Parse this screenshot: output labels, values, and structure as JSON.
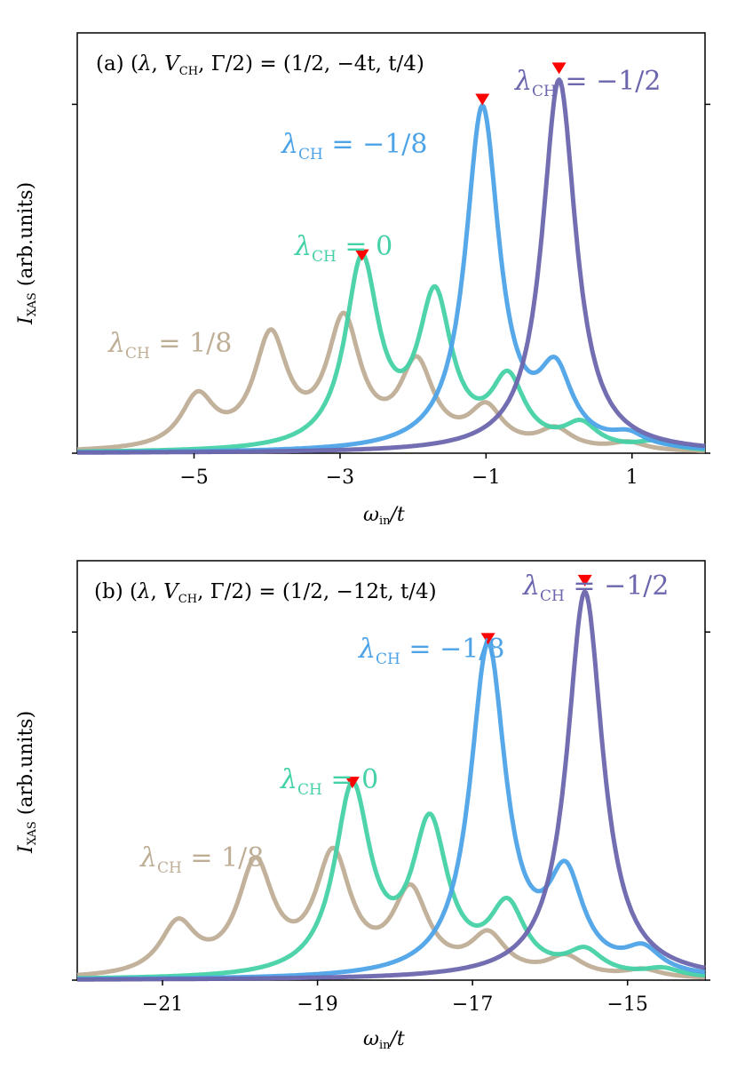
{
  "chart_data": [
    {
      "type": "line",
      "panel": "a",
      "title": "(a) (λ, V_CH, Γ/2) = (1/2, −4t, t/4)",
      "title_parts": {
        "prefix": "(a) (",
        "lambda": "λ",
        "sep1": ", ",
        "V": "V",
        "V_sub": "CH",
        "sep2": ", Γ/2) = (1/2, ",
        "rest": "−4t, t/4)"
      },
      "xlabel": "ω_in/t",
      "xlabel_parts": {
        "omega": "ω",
        "sub": "in",
        "rest": "/t"
      },
      "ylabel": "I_XAS (arb.units)",
      "ylabel_parts": {
        "I": "I",
        "sub": "XAS",
        "rest": " (arb.units)"
      },
      "xlim": [
        -6.6,
        2.0
      ],
      "ylim": [
        0,
        1.08
      ],
      "xticks": [
        -5,
        -3,
        -1,
        1
      ],
      "xtick_labels": [
        "−5",
        "−3",
        "−1",
        "1"
      ],
      "series": [
        {
          "name": "λ_CH = 1/8",
          "label_symbol": "λ",
          "label_sub": "CH",
          "label_value": " = 1/8",
          "color": "#bfae96",
          "peaks": [
            {
              "x": -4.95,
              "a": 0.13,
              "w": 0.28
            },
            {
              "x": -3.95,
              "a": 0.28,
              "w": 0.28
            },
            {
              "x": -2.95,
              "a": 0.32,
              "w": 0.28
            },
            {
              "x": -1.95,
              "a": 0.21,
              "w": 0.28
            },
            {
              "x": -1.0,
              "a": 0.1,
              "w": 0.28
            },
            {
              "x": -0.05,
              "a": 0.05,
              "w": 0.28
            },
            {
              "x": 0.95,
              "a": 0.02,
              "w": 0.28
            }
          ]
        },
        {
          "name": "λ_CH = 0",
          "label_symbol": "λ",
          "label_sub": "CH",
          "label_value": " = 0",
          "color": "#45d1a7",
          "peaks": [
            {
              "x": -2.7,
              "a": 0.48,
              "w": 0.28
            },
            {
              "x": -1.7,
              "a": 0.38,
              "w": 0.28
            },
            {
              "x": -0.7,
              "a": 0.17,
              "w": 0.28
            },
            {
              "x": 0.3,
              "a": 0.06,
              "w": 0.28
            },
            {
              "x": 1.3,
              "a": 0.02,
              "w": 0.28
            }
          ]
        },
        {
          "name": "λ_CH = −1/8",
          "label_symbol": "λ",
          "label_sub": "CH",
          "label_value": " = −1/8",
          "color": "#4da3e8",
          "peaks": [
            {
              "x": -1.05,
              "a": 0.88,
              "w": 0.28
            },
            {
              "x": -0.05,
              "a": 0.18,
              "w": 0.28
            },
            {
              "x": 0.95,
              "a": 0.03,
              "w": 0.28
            }
          ]
        },
        {
          "name": "λ_CH = −1/2",
          "label_symbol": "λ",
          "label_sub": "CH",
          "label_value": " = −1/2",
          "color": "#6b66ad",
          "peaks": [
            {
              "x": 0.0,
              "a": 0.96,
              "w": 0.28
            }
          ]
        }
      ],
      "markers": [
        {
          "x": -2.7,
          "y": 0.51
        },
        {
          "x": -1.05,
          "y": 0.91
        },
        {
          "x": 0.0,
          "y": 0.99
        }
      ],
      "marker_color": "#ff0000"
    },
    {
      "type": "line",
      "panel": "b",
      "title": "(b) (λ, V_CH, Γ/2) = (1/2, −12t, t/4)",
      "title_parts": {
        "prefix": "(b) (",
        "lambda": "λ",
        "sep1": ", ",
        "V": "V",
        "V_sub": "CH",
        "sep2": ", Γ/2) = (1/2, ",
        "rest": "−12t, t/4)"
      },
      "xlabel": "ω_in/t",
      "xlabel_parts": {
        "omega": "ω",
        "sub": "in",
        "rest": "/t"
      },
      "ylabel": "I_XAS (arb.units)",
      "ylabel_parts": {
        "I": "I",
        "sub": "XAS",
        "rest": " (arb.units)"
      },
      "xlim": [
        -22.1,
        -14.0
      ],
      "ylim": [
        0,
        1.08
      ],
      "xticks": [
        -21,
        -19,
        -17,
        -15
      ],
      "xtick_labels": [
        "−21",
        "−19",
        "−17",
        "−15"
      ],
      "series": [
        {
          "name": "λ_CH = 1/8",
          "label_symbol": "λ",
          "label_sub": "CH",
          "label_value": " = 1/8",
          "color": "#bfae96",
          "peaks": [
            {
              "x": -20.8,
              "a": 0.13,
              "w": 0.28
            },
            {
              "x": -19.8,
              "a": 0.28,
              "w": 0.28
            },
            {
              "x": -18.8,
              "a": 0.3,
              "w": 0.28
            },
            {
              "x": -17.8,
              "a": 0.21,
              "w": 0.28
            },
            {
              "x": -16.8,
              "a": 0.1,
              "w": 0.28
            },
            {
              "x": -15.8,
              "a": 0.05,
              "w": 0.28
            },
            {
              "x": -14.8,
              "a": 0.02,
              "w": 0.28
            }
          ]
        },
        {
          "name": "λ_CH = 0",
          "label_symbol": "λ",
          "label_sub": "CH",
          "label_value": " = 0",
          "color": "#45d1a7",
          "peaks": [
            {
              "x": -18.55,
              "a": 0.48,
              "w": 0.28
            },
            {
              "x": -17.55,
              "a": 0.38,
              "w": 0.28
            },
            {
              "x": -16.55,
              "a": 0.17,
              "w": 0.28
            },
            {
              "x": -15.55,
              "a": 0.06,
              "w": 0.28
            },
            {
              "x": -14.55,
              "a": 0.02,
              "w": 0.28
            }
          ]
        },
        {
          "name": "λ_CH = −1/8",
          "label_symbol": "λ",
          "label_sub": "CH",
          "label_value": " = −1/8",
          "color": "#4da3e8",
          "peaks": [
            {
              "x": -16.8,
              "a": 0.85,
              "w": 0.28
            },
            {
              "x": -15.8,
              "a": 0.24,
              "w": 0.28
            },
            {
              "x": -14.8,
              "a": 0.06,
              "w": 0.28
            }
          ]
        },
        {
          "name": "λ_CH = −1/2",
          "label_symbol": "λ",
          "label_sub": "CH",
          "label_value": " = −1/2",
          "color": "#6b66ad",
          "peaks": [
            {
              "x": -15.55,
              "a": 1.0,
              "w": 0.28
            }
          ]
        }
      ],
      "markers": [
        {
          "x": -18.55,
          "y": 0.51
        },
        {
          "x": -16.8,
          "y": 0.88
        },
        {
          "x": -15.55,
          "y": 1.03
        }
      ],
      "marker_color": "#ff0000"
    }
  ]
}
